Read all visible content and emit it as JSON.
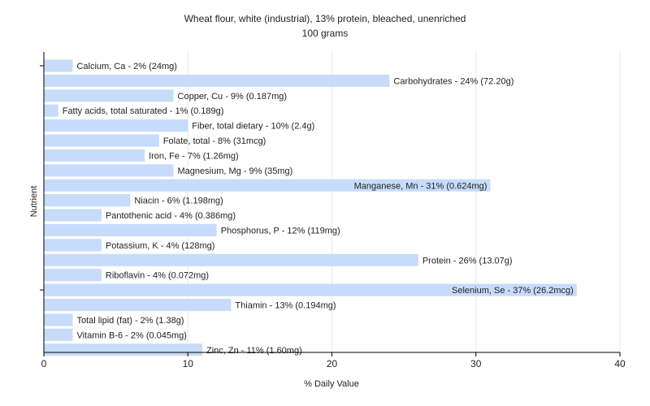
{
  "chart_data": {
    "type": "bar",
    "orientation": "horizontal",
    "title": "Wheat flour, white (industrial), 13% protein, bleached, unenriched",
    "subtitle": "100 grams",
    "xlabel": "% Daily Value",
    "ylabel": "Nutrient",
    "xlim": [
      0,
      40
    ],
    "xticks": [
      0,
      10,
      20,
      30,
      40
    ],
    "grid": "vertical",
    "bar_color": "#c6dcfa",
    "categories": [
      "Calcium, Ca",
      "Carbohydrates",
      "Copper, Cu",
      "Fatty acids, total saturated",
      "Fiber, total dietary",
      "Folate, total",
      "Iron, Fe",
      "Magnesium, Mg",
      "Manganese, Mn",
      "Niacin",
      "Pantothenic acid",
      "Phosphorus, P",
      "Potassium, K",
      "Protein",
      "Riboflavin",
      "Selenium, Se",
      "Thiamin",
      "Total lipid (fat)",
      "Vitamin B-6",
      "Zinc, Zn"
    ],
    "values": [
      2,
      24,
      9,
      1,
      10,
      8,
      7,
      9,
      31,
      6,
      4,
      12,
      4,
      26,
      4,
      37,
      13,
      2,
      2,
      11
    ],
    "labels": [
      "Calcium, Ca - 2% (24mg)",
      "Carbohydrates - 24% (72.20g)",
      "Copper, Cu - 9% (0.187mg)",
      "Fatty acids, total saturated - 1% (0.189g)",
      "Fiber, total dietary - 10% (2.4g)",
      "Folate, total - 8% (31mcg)",
      "Iron, Fe - 7% (1.26mg)",
      "Magnesium, Mg - 9% (35mg)",
      "Manganese, Mn - 31% (0.624mg)",
      "Niacin - 6% (1.198mg)",
      "Pantothenic acid - 4% (0.386mg)",
      "Phosphorus, P - 12% (119mg)",
      "Potassium, K - 4% (128mg)",
      "Protein - 26% (13.07g)",
      "Riboflavin - 4% (0.072mg)",
      "Selenium, Se - 37% (26.2mcg)",
      "Thiamin - 13% (0.194mg)",
      "Total lipid (fat) - 2% (1.38g)",
      "Vitamin B-6 - 2% (0.045mg)",
      "Zinc, Zn - 11% (1.60mg)"
    ]
  }
}
